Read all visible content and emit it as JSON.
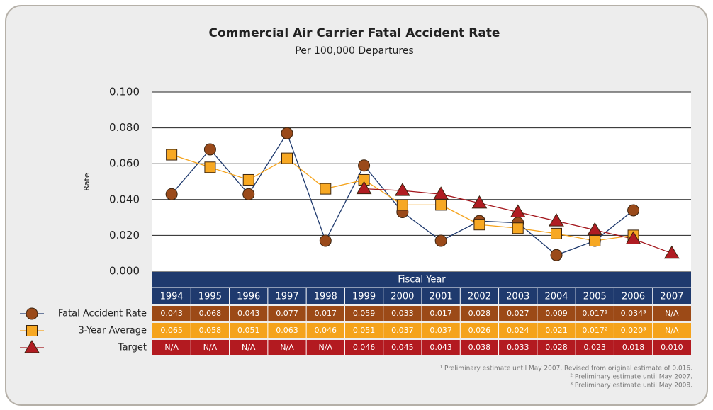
{
  "chart_data": {
    "type": "line",
    "title": "Commercial Air Carrier Fatal Accident Rate",
    "subtitle": "Per 100,000 Departures",
    "y_label": "Rate",
    "x_label": "Fiscal Year",
    "categories": [
      "1994",
      "1995",
      "1996",
      "1997",
      "1998",
      "1999",
      "2000",
      "2001",
      "2002",
      "2003",
      "2004",
      "2005",
      "2006",
      "2007"
    ],
    "ylim": [
      0,
      0.1
    ],
    "yticks": [
      {
        "value": 0,
        "label": "0.000"
      },
      {
        "value": 0.02,
        "label": "0.020"
      },
      {
        "value": 0.04,
        "label": "0.040"
      },
      {
        "value": 0.06,
        "label": "0.060"
      },
      {
        "value": 0.08,
        "label": "0.080"
      },
      {
        "value": 0.1,
        "label": "0.100"
      }
    ],
    "grid": true,
    "series": [
      {
        "name": "Fatal Accident Rate",
        "color": "#1f3a6e",
        "marker": "circle",
        "marker_color": "#9a4a1a",
        "row_color": "#9c4a17",
        "values": [
          0.043,
          0.068,
          0.043,
          0.077,
          0.017,
          0.059,
          0.033,
          0.017,
          0.028,
          0.027,
          0.009,
          0.017,
          0.034,
          null
        ],
        "value_labels": [
          "0.043",
          "0.068",
          "0.043",
          "0.077",
          "0.017",
          "0.059",
          "0.033",
          "0.017",
          "0.028",
          "0.027",
          "0.009",
          "0.017¹",
          "0.034³",
          "N/A"
        ]
      },
      {
        "name": "3-Year Average",
        "color": "#f5a31b",
        "marker": "square",
        "marker_color": "#f7a823",
        "row_color": "#f5a31b",
        "values": [
          0.065,
          0.058,
          0.051,
          0.063,
          0.046,
          0.051,
          0.037,
          0.037,
          0.026,
          0.024,
          0.021,
          0.017,
          0.02,
          null
        ],
        "value_labels": [
          "0.065",
          "0.058",
          "0.051",
          "0.063",
          "0.046",
          "0.051",
          "0.037",
          "0.037",
          "0.026",
          "0.024",
          "0.021",
          "0.017²",
          "0.020³",
          "N/A"
        ]
      },
      {
        "name": "Target",
        "color": "#a3161c",
        "marker": "triangle",
        "marker_color": "#b01c22",
        "row_color": "#b31a20",
        "values": [
          null,
          null,
          null,
          null,
          null,
          0.046,
          0.045,
          0.043,
          0.038,
          0.033,
          0.028,
          0.023,
          0.018,
          0.01
        ],
        "value_labels": [
          "N/A",
          "N/A",
          "N/A",
          "N/A",
          "N/A",
          "0.046",
          "0.045",
          "0.043",
          "0.038",
          "0.033",
          "0.028",
          "0.023",
          "0.018",
          "0.010"
        ]
      }
    ],
    "footnotes": [
      "¹ Preliminary estimate until May 2007. Revised from original estimate of 0.016.",
      "² Preliminary estimate until May 2007.",
      "³ Preliminary estimate until May 2008."
    ]
  }
}
